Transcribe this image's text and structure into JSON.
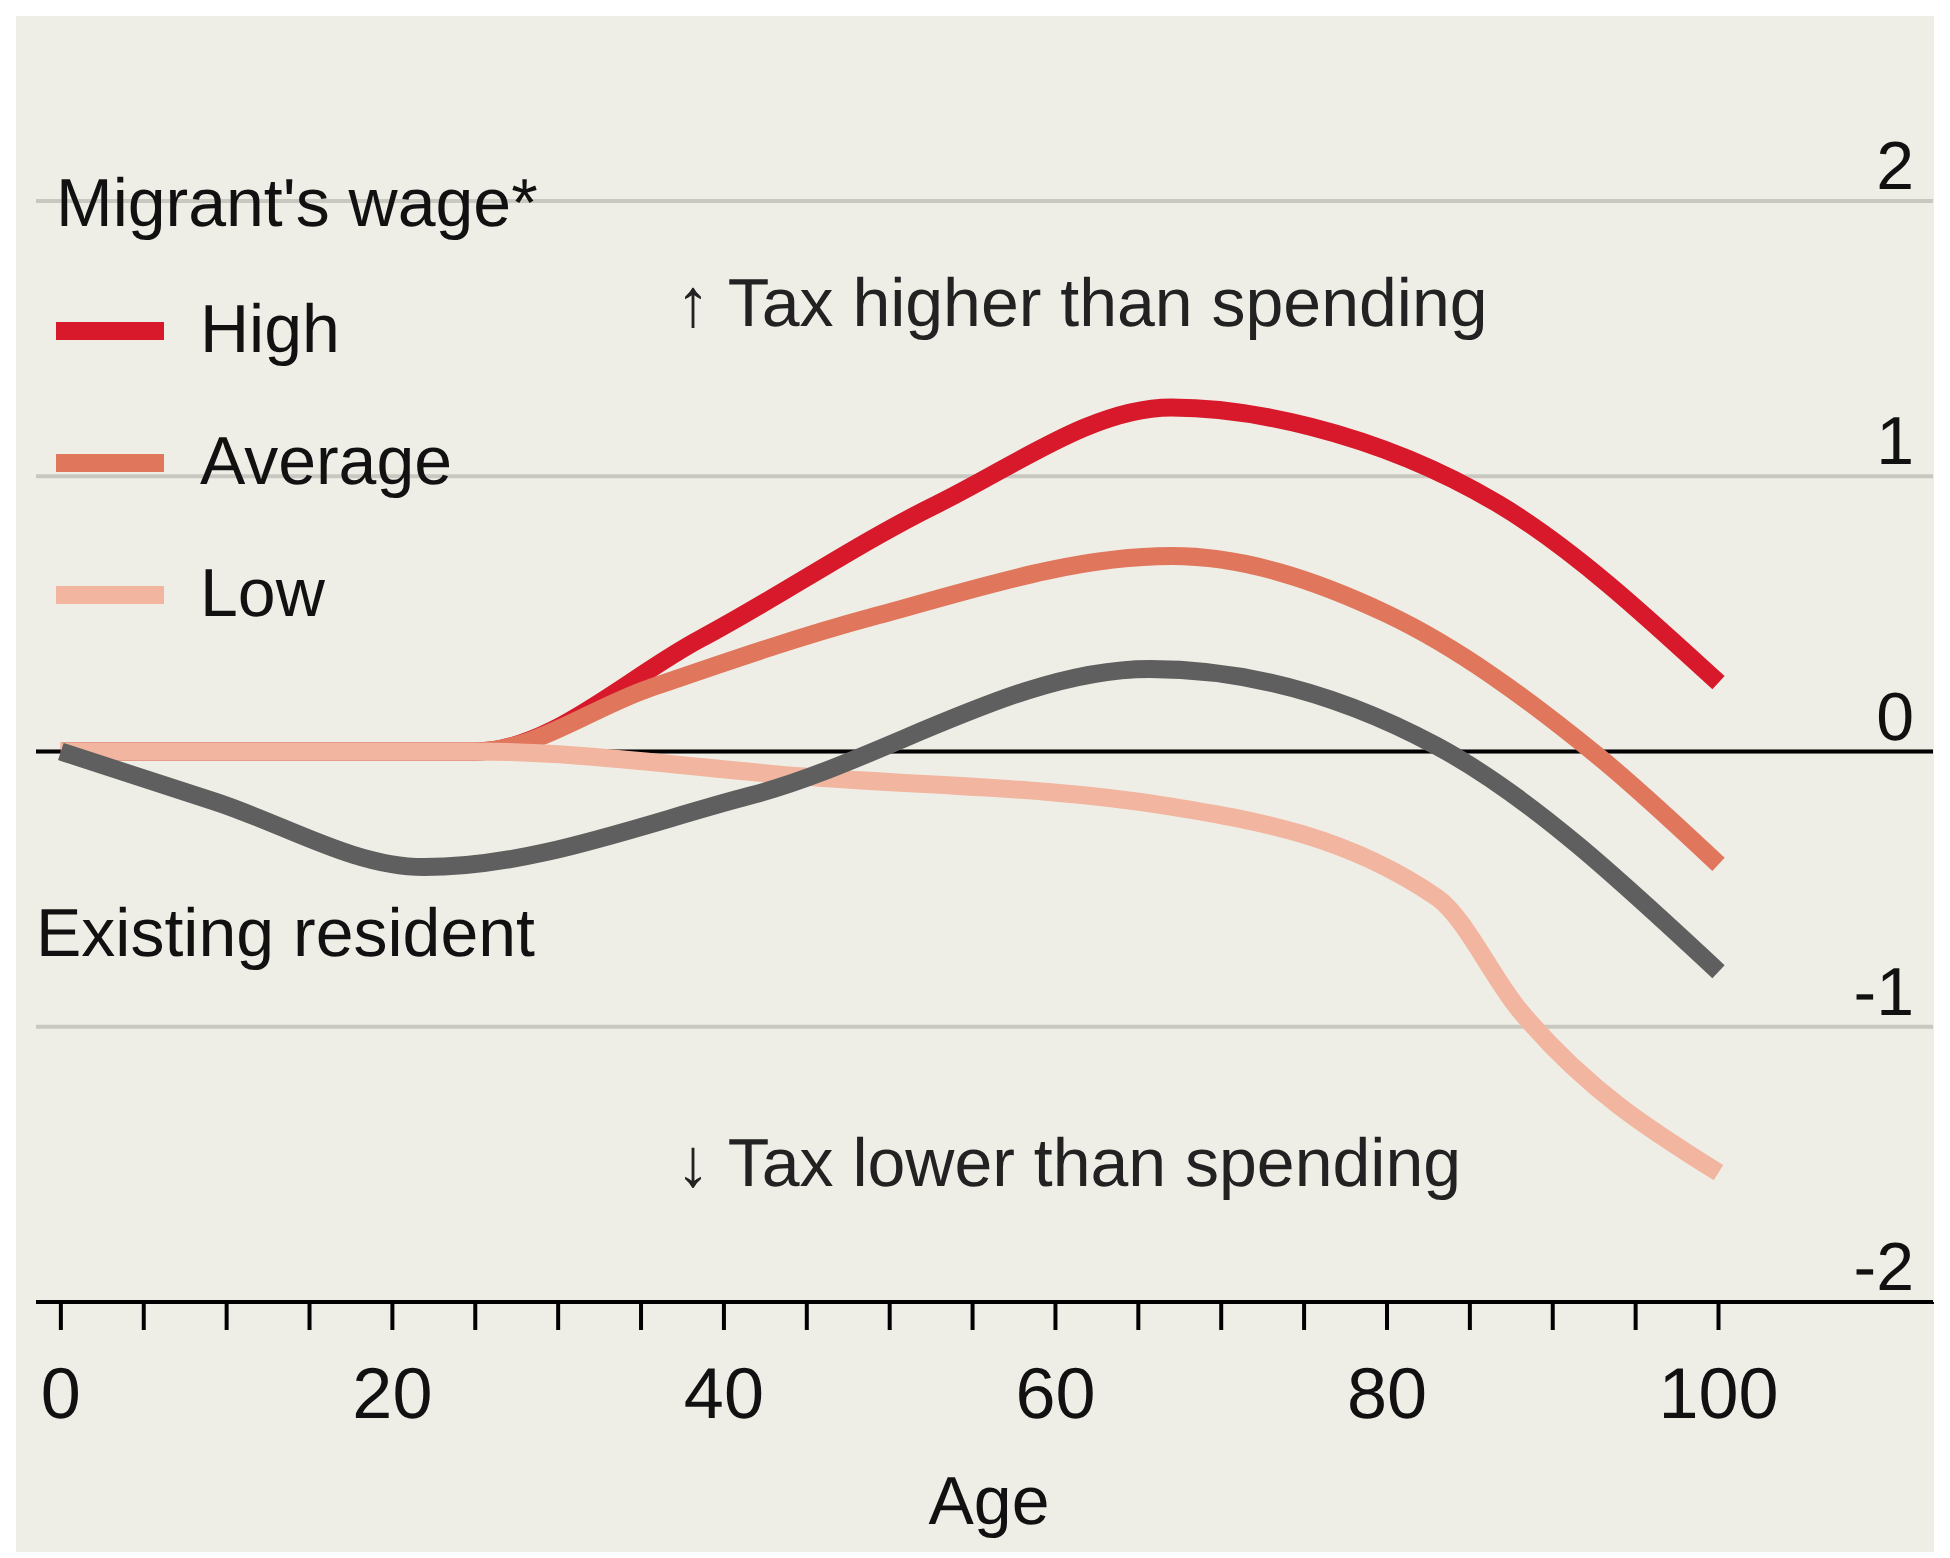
{
  "chart_data": {
    "type": "line",
    "xlabel": "Age",
    "legend_title": "Migrant's wage*",
    "legend": "top left",
    "annotations": [
      "↑ Tax higher than spending",
      "↓ Tax lower than spending"
    ],
    "series": [
      {
        "name": "High",
        "color": "#d7192b",
        "x": [
          0,
          10,
          20,
          25,
          38.6,
          52.9,
          67,
          75.4,
          86.7,
          100
        ],
        "values": [
          0,
          0,
          0,
          0,
          0.41,
          0.9,
          1.25,
          1.18,
          0.9,
          0.25
        ]
      },
      {
        "name": "Average",
        "color": "#e0765c",
        "x": [
          0,
          10,
          20,
          25,
          35.5,
          49,
          67,
          80,
          92.8,
          100
        ],
        "values": [
          0,
          0,
          0,
          0,
          0.23,
          0.49,
          0.71,
          0.5,
          -0.02,
          -0.41
        ]
      },
      {
        "name": "Low",
        "color": "#f2b5a0",
        "x": [
          0,
          10,
          20,
          25,
          44.6,
          67,
          83,
          88,
          100
        ],
        "values": [
          0,
          0,
          0,
          0,
          -0.09,
          -0.2,
          -0.53,
          -0.94,
          -1.53
        ]
      },
      {
        "name": "Existing resident",
        "color": "#5f5f5f",
        "x": [
          0,
          9.2,
          21.9,
          41.6,
          65.7,
          83,
          100
        ],
        "values": [
          0,
          -0.18,
          -0.42,
          -0.16,
          0.3,
          0.02,
          -0.8
        ]
      }
    ],
    "xlim": [
      -1.5,
      113
    ],
    "xticks": [
      0,
      {
        "value": 5,
        "label": null
      },
      {
        "value": 10,
        "label": null
      },
      {
        "value": 15,
        "label": null
      },
      20,
      {
        "value": 25,
        "label": null
      },
      {
        "value": 30,
        "label": null
      },
      {
        "value": 35,
        "label": null
      },
      40,
      {
        "value": 45,
        "label": null
      },
      {
        "value": 50,
        "label": null
      },
      {
        "value": 55,
        "label": null
      },
      60,
      {
        "value": 65,
        "label": null
      },
      {
        "value": 70,
        "label": null
      },
      {
        "value": 75,
        "label": null
      },
      80,
      {
        "value": 85,
        "label": null
      },
      {
        "value": 90,
        "label": null
      },
      {
        "value": 95,
        "label": null
      },
      100
    ],
    "ylim": [
      -2,
      2.2
    ],
    "yticks": [
      -2,
      -1,
      0,
      1,
      2
    ],
    "grid": "y",
    "ref_lines": [
      {
        "axis": "y",
        "value": 0,
        "color": "#000000"
      }
    ],
    "line_style": "solid",
    "marker": "none"
  }
}
